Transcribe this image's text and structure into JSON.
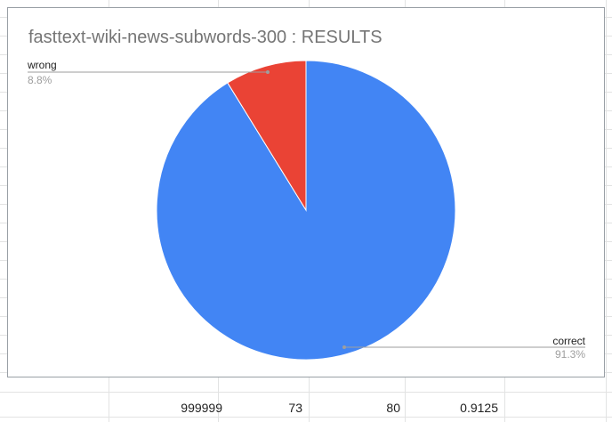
{
  "chart_data": {
    "type": "pie",
    "title": "fasttext-wiki-news-subwords-300 : RESULTS",
    "slices": [
      {
        "name": "correct",
        "percent_label": "91.3%",
        "value": 91.3,
        "color": "#4285f4"
      },
      {
        "name": "wrong",
        "percent_label": "8.8%",
        "value": 8.8,
        "color": "#ea4335"
      }
    ],
    "legend": "none"
  },
  "cells": [
    "999999",
    "73",
    "80",
    "0.9125"
  ]
}
